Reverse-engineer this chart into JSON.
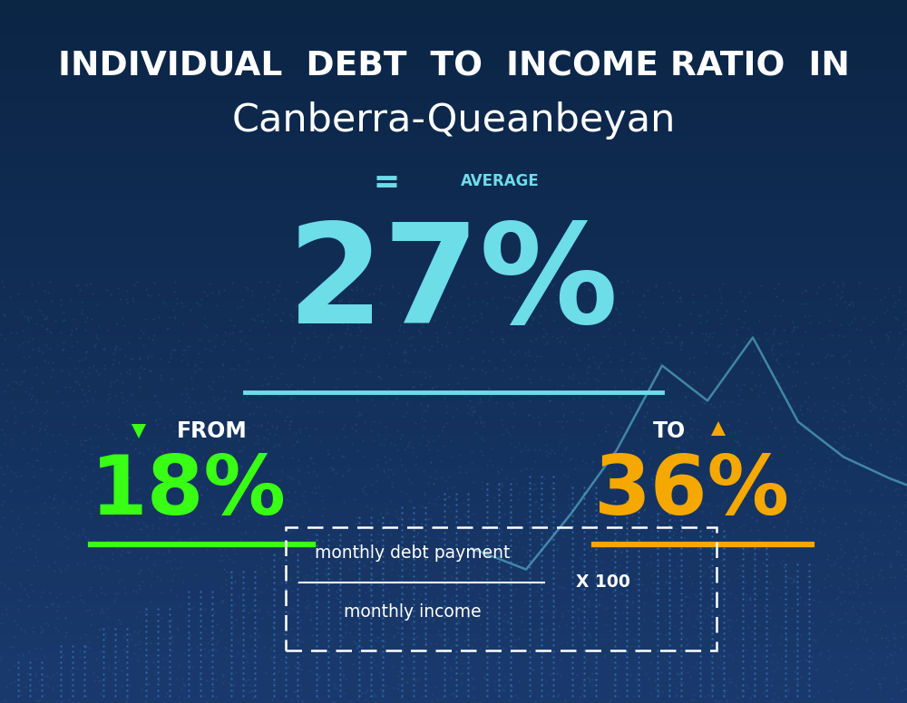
{
  "bg_color_top": "#0b2545",
  "bg_color_bottom": "#1a3a6e",
  "title_line1": "INDIVIDUAL  DEBT  TO  INCOME RATIO  IN",
  "title_line2": "Canberra-Queanbeyan",
  "avg_label": "AVERAGE",
  "avg_value": "27%",
  "avg_color": "#6ddde8",
  "avg_line_color": "#6ddde8",
  "from_label": "FROM",
  "from_value": "18%",
  "from_color": "#39ff14",
  "from_line_color": "#39ff14",
  "to_label": "TO",
  "to_value": "36%",
  "to_color": "#f5a800",
  "to_line_color": "#f5a800",
  "title_color": "#ffffff",
  "formula_text1": "monthly debt payment",
  "formula_text2": "monthly income",
  "formula_x100": "X 100",
  "formula_box_color": "#ffffff",
  "avg_icon_color": "#6ddde8",
  "down_arrow_color": "#39ff14",
  "up_arrow_color": "#f5a800"
}
